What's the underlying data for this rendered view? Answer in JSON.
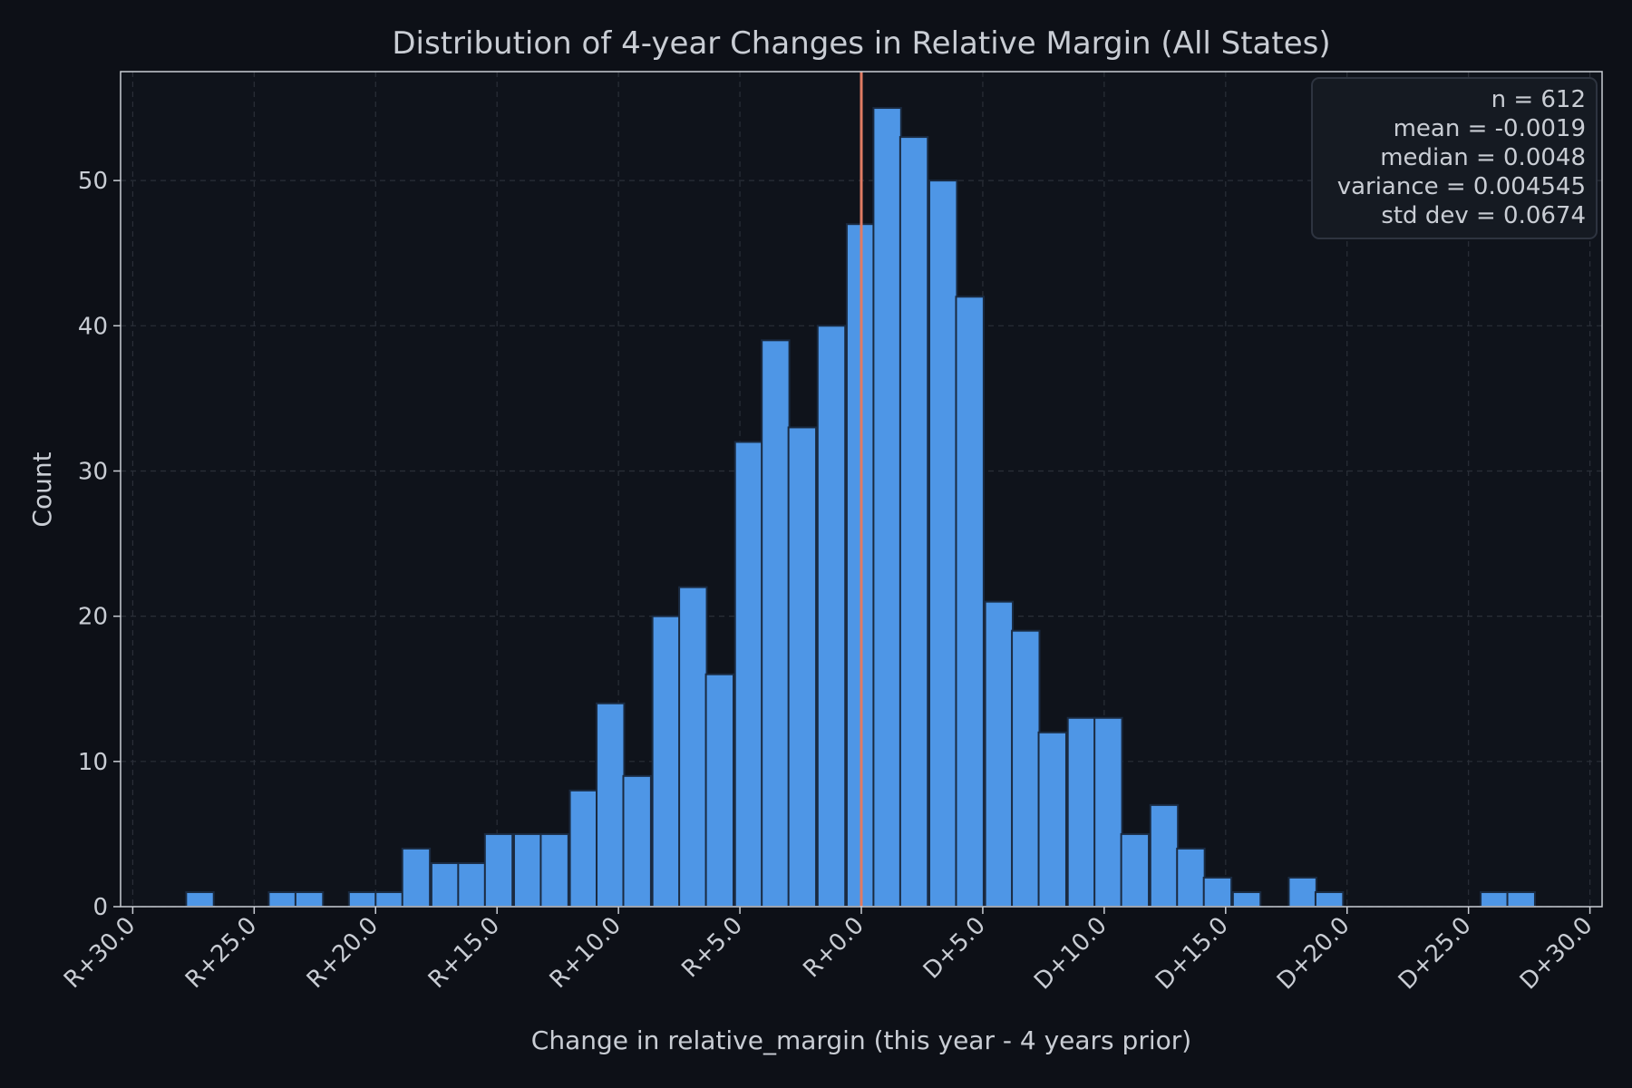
{
  "colors": {
    "background": "#0d1017",
    "bar_fill": "#4e96e6",
    "bar_edge": "#1a2a40",
    "mean_line": "#e07b63",
    "text": "#c9cdd4",
    "grid": "#2a2f38",
    "axis": "#c9cdd4",
    "stats_box_bg": "#151a22",
    "stats_box_border": "#2e3440"
  },
  "chart_data": {
    "type": "bar",
    "title": "Distribution of 4-year Changes in Relative Margin (All States)",
    "xlabel": "Change in relative_margin (this year - 4 years prior)",
    "ylabel": "Count",
    "xlim": [
      -30.5,
      30.5
    ],
    "ylim": [
      0,
      57.5
    ],
    "x_ticks": [
      {
        "value": -30,
        "label": "R+30.0"
      },
      {
        "value": -25,
        "label": "R+25.0"
      },
      {
        "value": -20,
        "label": "R+20.0"
      },
      {
        "value": -15,
        "label": "R+15.0"
      },
      {
        "value": -10,
        "label": "R+10.0"
      },
      {
        "value": -5,
        "label": "R+5.0"
      },
      {
        "value": 0,
        "label": "R+0.0"
      },
      {
        "value": 5,
        "label": "D+5.0"
      },
      {
        "value": 10,
        "label": "D+10.0"
      },
      {
        "value": 15,
        "label": "D+15.0"
      },
      {
        "value": 20,
        "label": "D+20.0"
      },
      {
        "value": 25,
        "label": "D+25.0"
      },
      {
        "value": 30,
        "label": "D+30.0"
      }
    ],
    "y_ticks": [
      0,
      10,
      20,
      30,
      40,
      50
    ],
    "grid": true,
    "bin_width": 1.136,
    "bins": [
      {
        "x0": -27.8,
        "count": 1
      },
      {
        "x0": -25.5,
        "count": 0
      },
      {
        "x0": -24.4,
        "count": 1
      },
      {
        "x0": -23.3,
        "count": 1
      },
      {
        "x0": -21.1,
        "count": 1
      },
      {
        "x0": -20.0,
        "count": 1
      },
      {
        "x0": -18.9,
        "count": 4
      },
      {
        "x0": -17.7,
        "count": 3
      },
      {
        "x0": -16.6,
        "count": 3
      },
      {
        "x0": -15.5,
        "count": 5
      },
      {
        "x0": -14.3,
        "count": 5
      },
      {
        "x0": -13.2,
        "count": 5
      },
      {
        "x0": -12.0,
        "count": 8
      },
      {
        "x0": -10.9,
        "count": 14
      },
      {
        "x0": -9.8,
        "count": 9
      },
      {
        "x0": -8.6,
        "count": 20
      },
      {
        "x0": -7.5,
        "count": 22
      },
      {
        "x0": -6.4,
        "count": 16
      },
      {
        "x0": -5.2,
        "count": 32
      },
      {
        "x0": -4.1,
        "count": 39
      },
      {
        "x0": -3.0,
        "count": 33
      },
      {
        "x0": -1.8,
        "count": 40
      },
      {
        "x0": -0.6,
        "count": 47
      },
      {
        "x0": 0.5,
        "count": 55
      },
      {
        "x0": 1.6,
        "count": 53
      },
      {
        "x0": 2.8,
        "count": 50
      },
      {
        "x0": 3.9,
        "count": 42
      },
      {
        "x0": 5.1,
        "count": 21
      },
      {
        "x0": 6.2,
        "count": 19
      },
      {
        "x0": 7.3,
        "count": 12
      },
      {
        "x0": 8.5,
        "count": 13
      },
      {
        "x0": 9.6,
        "count": 13
      },
      {
        "x0": 10.7,
        "count": 5
      },
      {
        "x0": 11.9,
        "count": 7
      },
      {
        "x0": 13.0,
        "count": 4
      },
      {
        "x0": 14.1,
        "count": 2
      },
      {
        "x0": 15.3,
        "count": 1
      },
      {
        "x0": 17.6,
        "count": 2
      },
      {
        "x0": 18.7,
        "count": 1
      },
      {
        "x0": 25.5,
        "count": 1
      },
      {
        "x0": 26.6,
        "count": 1
      }
    ],
    "mean_line_x": 0,
    "stats": {
      "lines": [
        "n = 612",
        "mean = -0.0019",
        "median = 0.0048",
        "variance = 0.004545",
        "std dev = 0.0674"
      ],
      "placement": "top-right"
    }
  }
}
